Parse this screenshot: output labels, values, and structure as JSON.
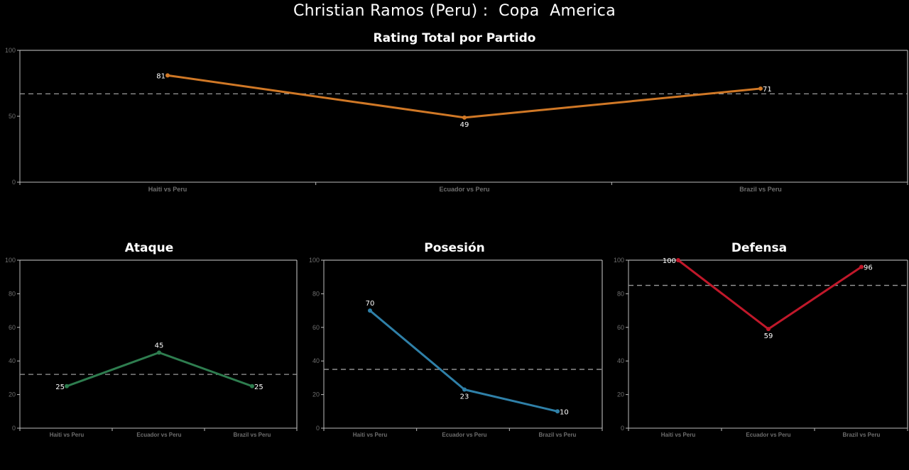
{
  "title": "Christian Ramos (Peru) :  Copa  America",
  "colors": {
    "background": "#000000",
    "total": "#d07826",
    "ataque": "#2e7d4f",
    "posesion": "#2f80a8",
    "defensa": "#c0182a",
    "reference_line": "#9a9a9a",
    "axis": "#bbbbbb"
  },
  "chart_data": [
    {
      "type": "line",
      "id": "total",
      "title": "Rating Total por Partido",
      "categories": [
        "Haiti vs Peru",
        "Ecuador vs Peru",
        "Brazil vs Peru"
      ],
      "values": [
        81,
        49,
        71
      ],
      "reference_value": 67,
      "ylim": [
        0,
        100
      ],
      "yticks": [
        0,
        50,
        100
      ],
      "color_key": "total"
    },
    {
      "type": "line",
      "id": "ataque",
      "title": "Ataque",
      "categories": [
        "Haiti vs Peru",
        "Ecuador vs Peru",
        "Brazil vs Peru"
      ],
      "values": [
        25,
        45,
        25
      ],
      "reference_value": 32,
      "ylim": [
        0,
        100
      ],
      "yticks": [
        0,
        20,
        40,
        60,
        80,
        100
      ],
      "color_key": "ataque"
    },
    {
      "type": "line",
      "id": "posesion",
      "title": "Posesión",
      "categories": [
        "Haiti vs Peru",
        "Ecuador vs Peru",
        "Brazil vs Peru"
      ],
      "values": [
        70,
        23,
        10
      ],
      "reference_value": 35,
      "ylim": [
        0,
        100
      ],
      "yticks": [
        0,
        20,
        40,
        60,
        80,
        100
      ],
      "color_key": "posesion"
    },
    {
      "type": "line",
      "id": "defensa",
      "title": "Defensa",
      "categories": [
        "Haiti vs Peru",
        "Ecuador vs Peru",
        "Brazil vs Peru"
      ],
      "values": [
        100,
        59,
        96
      ],
      "reference_value": 85,
      "ylim": [
        0,
        100
      ],
      "yticks": [
        0,
        20,
        40,
        60,
        80,
        100
      ],
      "color_key": "defensa"
    }
  ]
}
